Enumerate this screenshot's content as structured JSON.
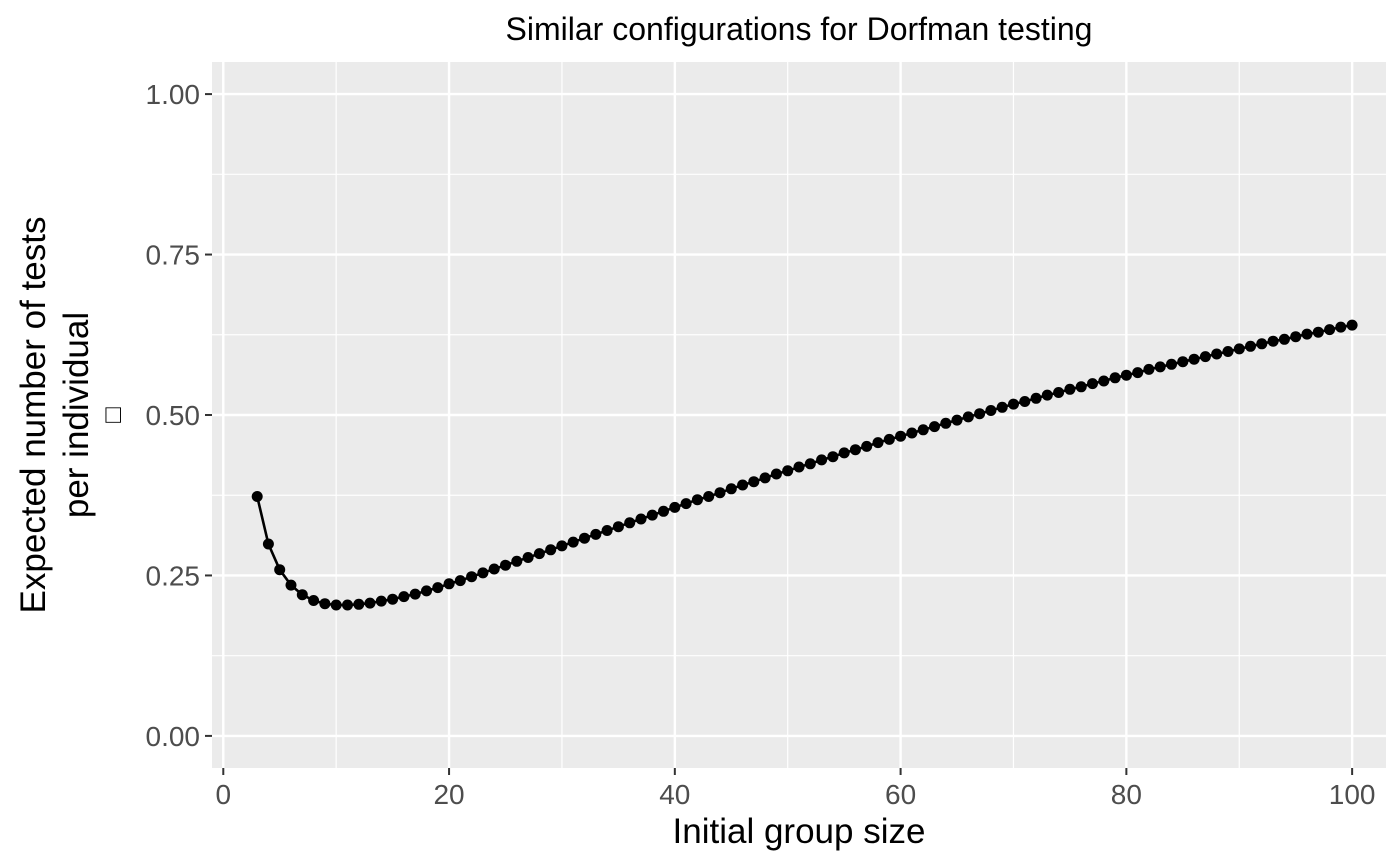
{
  "chart_data": {
    "type": "line",
    "title": "Similar configurations for Dorfman testing",
    "xlabel": "Initial group size",
    "ylabel_lines": [
      "Expected number of tests",
      "per individual"
    ],
    "ylabel_symbol": "□",
    "xlim": [
      -1,
      103
    ],
    "ylim": [
      -0.05,
      1.05
    ],
    "x_ticks": [
      0,
      20,
      40,
      60,
      80,
      100
    ],
    "x_tick_labels": [
      "0",
      "20",
      "40",
      "60",
      "80",
      "100"
    ],
    "y_ticks": [
      0,
      0.25,
      0.5,
      0.75,
      1.0
    ],
    "y_tick_labels": [
      "0.00",
      "0.25",
      "0.50",
      "0.75",
      "1.00"
    ],
    "grid": true,
    "legend": "none",
    "colors": {
      "panel": "#ebebeb",
      "grid": "#ffffff",
      "series": "#000000",
      "tick": "#333333",
      "tick_label": "#4d4d4d"
    },
    "series": [
      {
        "x": [
          3,
          4,
          5,
          6,
          7,
          8,
          9,
          10,
          11,
          12,
          13,
          14,
          15,
          16,
          17,
          18,
          19,
          20,
          21,
          22,
          23,
          24,
          25,
          26,
          27,
          28,
          29,
          30,
          31,
          32,
          33,
          34,
          35,
          36,
          37,
          38,
          39,
          40,
          41,
          42,
          43,
          44,
          45,
          46,
          47,
          48,
          49,
          50,
          51,
          52,
          53,
          54,
          55,
          56,
          57,
          58,
          59,
          60,
          61,
          62,
          63,
          64,
          65,
          66,
          67,
          68,
          69,
          70,
          71,
          72,
          73,
          74,
          75,
          76,
          77,
          78,
          79,
          80,
          81,
          82,
          83,
          84,
          85,
          86,
          87,
          88,
          89,
          90,
          91,
          92,
          93,
          94,
          95,
          96,
          97,
          98,
          99,
          100
        ],
        "y": [
          0.373,
          0.299,
          0.259,
          0.235,
          0.22,
          0.211,
          0.206,
          0.204,
          0.204,
          0.205,
          0.207,
          0.21,
          0.213,
          0.217,
          0.221,
          0.226,
          0.231,
          0.237,
          0.242,
          0.248,
          0.254,
          0.26,
          0.266,
          0.272,
          0.278,
          0.284,
          0.29,
          0.296,
          0.302,
          0.308,
          0.314,
          0.32,
          0.326,
          0.332,
          0.338,
          0.344,
          0.35,
          0.356,
          0.362,
          0.368,
          0.373,
          0.379,
          0.385,
          0.391,
          0.396,
          0.402,
          0.408,
          0.413,
          0.419,
          0.424,
          0.43,
          0.435,
          0.441,
          0.446,
          0.451,
          0.457,
          0.462,
          0.467,
          0.472,
          0.477,
          0.482,
          0.487,
          0.492,
          0.497,
          0.502,
          0.507,
          0.512,
          0.517,
          0.521,
          0.526,
          0.531,
          0.535,
          0.54,
          0.544,
          0.549,
          0.553,
          0.558,
          0.562,
          0.566,
          0.571,
          0.575,
          0.579,
          0.583,
          0.587,
          0.591,
          0.595,
          0.599,
          0.603,
          0.607,
          0.611,
          0.615,
          0.618,
          0.622,
          0.626,
          0.629,
          0.633,
          0.637,
          0.64
        ]
      }
    ]
  }
}
